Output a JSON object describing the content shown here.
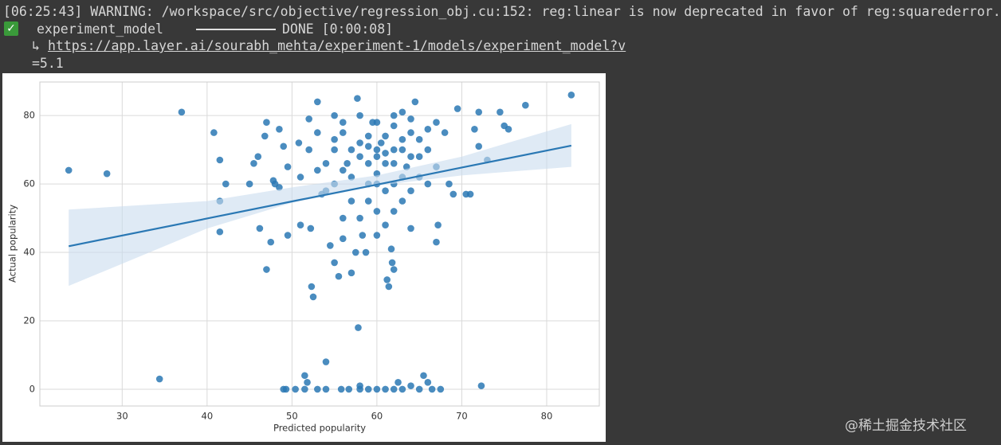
{
  "console": {
    "warning": "[06:25:43] WARNING: /workspace/src/objective/regression_obj.cu:152: reg:linear is now deprecated in favor of reg:squarederror.",
    "model_name": "experiment_model",
    "status": "DONE [0:00:08]",
    "arrow": "↳",
    "link": "https://app.layer.ai/sourabh_mehta/experiment-1/models/experiment_model?v",
    "link_cont": "=5.1"
  },
  "watermark": "@稀土掘金技术社区",
  "chart_data": {
    "type": "scatter",
    "x_label": "Predicted popularity",
    "y_label": "Actual popularity",
    "xlim": [
      20.3,
      86.2
    ],
    "ylim": [
      -4.9,
      89.8
    ],
    "xticks": [
      30,
      40,
      50,
      60,
      70,
      80
    ],
    "yticks": [
      0,
      20,
      40,
      60,
      80
    ],
    "grid": true,
    "color": "#2a78b4",
    "x": [
      23.7,
      28.2,
      34.4,
      37,
      40.8,
      41.5,
      41.5,
      41.5,
      42.2,
      45,
      45.5,
      46,
      46.2,
      46.8,
      47,
      47,
      47.5,
      47.8,
      48,
      48.5,
      49,
      48.5,
      49.5,
      49.5,
      49.3,
      49,
      50.4,
      50.8,
      51,
      51,
      51.5,
      51.5,
      51.8,
      52,
      52.3,
      52.5,
      52.2,
      53,
      53,
      53,
      53.5,
      54,
      54,
      54.5,
      55,
      55,
      55.5,
      55.8,
      56,
      56.5,
      56.7,
      57,
      57.5,
      57.7,
      57.8,
      58,
      58,
      58.3,
      58.7,
      59,
      59,
      59.5,
      60,
      60,
      60.5,
      61,
      61,
      61.2,
      61.4,
      61.7,
      61.8,
      62,
      62,
      62,
      62.5,
      63,
      63,
      63.5,
      64,
      64,
      64.5,
      65,
      65,
      65.5,
      66,
      66,
      66.5,
      67,
      67,
      67.5,
      67.2,
      68,
      68.5,
      69,
      69.5,
      70.5,
      71,
      71.5,
      72,
      72,
      72.3,
      73,
      74.5,
      75,
      75.5,
      77.5,
      82.9,
      55,
      56,
      57,
      58,
      59,
      60,
      61,
      62,
      63,
      64,
      65,
      58,
      60,
      62,
      63,
      61,
      59,
      57,
      56,
      60,
      62,
      64,
      66,
      55,
      54,
      53,
      52,
      56,
      58,
      60,
      62,
      63,
      64,
      65,
      61,
      59,
      57,
      55,
      54,
      66,
      67,
      58,
      60,
      63,
      62,
      61,
      64,
      59,
      60,
      56
    ],
    "y": [
      64,
      63,
      3,
      81,
      75,
      67,
      55,
      46,
      60,
      60,
      66,
      68,
      47,
      74,
      78,
      35,
      43,
      61,
      60,
      59,
      71,
      76,
      45,
      65,
      0,
      0,
      0,
      72,
      62,
      48,
      0,
      4,
      2,
      79,
      30,
      27,
      47,
      84,
      0,
      64,
      57,
      8,
      0,
      42,
      73,
      37,
      33,
      0,
      44,
      66,
      0,
      34,
      40,
      85,
      18,
      0,
      1,
      45,
      40,
      0,
      55,
      78,
      0,
      68,
      72,
      48,
      0,
      32,
      30,
      41,
      37,
      35,
      52,
      0,
      2,
      70,
      0,
      65,
      47,
      1,
      84,
      0,
      73,
      4,
      2,
      60,
      0,
      43,
      78,
      0,
      48,
      75,
      60,
      57,
      82,
      57,
      57,
      76,
      71,
      81,
      1,
      67,
      81,
      77,
      76,
      83,
      86,
      70,
      75,
      62,
      68,
      74,
      63,
      66,
      70,
      73,
      68,
      62,
      80,
      78,
      80,
      81,
      58,
      60,
      55,
      50,
      52,
      60,
      58,
      70,
      60,
      66,
      75,
      70,
      78,
      72,
      70,
      66,
      62,
      75,
      68,
      74,
      66,
      70,
      80,
      58,
      76,
      65,
      50,
      45,
      55,
      77,
      69,
      79,
      71,
      60,
      64
    ],
    "fit": {
      "color": "#2a78b4",
      "band_color": "#c9dcee",
      "x": [
        23.7,
        40,
        50,
        60,
        70,
        82.9
      ],
      "y": [
        41.8,
        49.9,
        54.9,
        59.8,
        64.8,
        71.2
      ],
      "lower": [
        30.2,
        47,
        54.5,
        59.5,
        62.5,
        65
      ],
      "upper": [
        52.5,
        55,
        59,
        62.5,
        68,
        77.5
      ]
    }
  }
}
